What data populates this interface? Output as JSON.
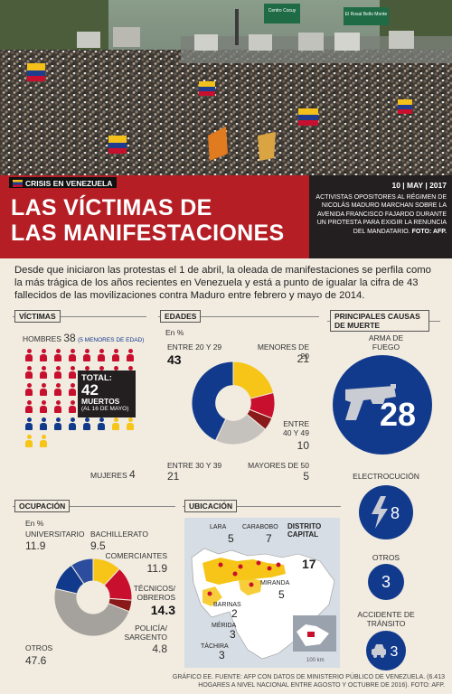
{
  "header": {
    "tag": "CRISIS EN VENEZUELA",
    "title_line1": "LAS VÍCTIMAS DE",
    "title_line2": "LAS MANIFESTACIONES",
    "date": "10 | MAY | 2017",
    "caption": "ACTIVISTAS OPOSITORES AL RÉGIMEN DE NICOLÁS MADURO MARCHAN SOBRE LA AVENIDA FRANCISCO FAJARDO DURANTE UN PROTESTA PARA EXIGIR LA RENUNCIA DEL MANDATARIO.",
    "credit": "FOTO: AFP.",
    "signs": [
      "Centro Cocuy",
      "El Rosal Bello Monte"
    ]
  },
  "lead": "Desde que iniciaron las protestas el 1 de abril, la oleada de manifestaciones se perfila como la más trágica de los años recientes en Venezuela y está a punto de igualar la cifra de 43 fallecidos de las movilizaciones contra Maduro entre febrero y mayo de 2014.",
  "victimas": {
    "heading": "VÍCTIMAS",
    "men_label": "HOMBRES",
    "men": 38,
    "men_note": "(5 MENORES DE EDAD)",
    "women_label": "MUJERES",
    "women": 4,
    "total_label": "TOTAL:",
    "total": 42,
    "total_unit": "MUERTOS",
    "total_date": "(AL 16 DE MAYO)"
  },
  "edades": {
    "heading": "EDADES",
    "unit": "En %",
    "items": [
      {
        "label": "ENTRE 20 Y 29",
        "value": "43",
        "color": "#123a8c"
      },
      {
        "label": "MENORES DE 20",
        "value": "21",
        "color": "#f6c517"
      },
      {
        "label": "ENTRE 40 Y 49",
        "value": "10",
        "color": "#c8102e"
      },
      {
        "label": "MAYORES DE 50",
        "value": "5",
        "color": "#8a1a1a"
      },
      {
        "label": "ENTRE 30 Y 39",
        "value": "21",
        "color": "#c5c2bd"
      }
    ]
  },
  "causas": {
    "heading": "PRINCIPALES CAUSAS DE MUERTE",
    "items": [
      {
        "label": "ARMA DE FUEGO",
        "value": "28",
        "icon": "pistol-icon"
      },
      {
        "label": "ELECTROCUCIÓN",
        "value": "8",
        "icon": "lightning-icon"
      },
      {
        "label": "OTROS",
        "value": "3",
        "icon": ""
      },
      {
        "label": "ACCIDENTE DE TRÁNSITO",
        "value": "3",
        "icon": "car-icon"
      }
    ]
  },
  "ocupacion": {
    "heading": "OCUPACIÓN",
    "unit": "En %",
    "items": [
      {
        "label": "UNIVERSITARIO",
        "value": "11.9",
        "color": "#123a8c"
      },
      {
        "label": "BACHILLERATO",
        "value": "9.5",
        "color": "#2c4c9e"
      },
      {
        "label": "COMERCIANTES",
        "value": "11.9",
        "color": "#f6c517"
      },
      {
        "label": "TÉCNICOS/ OBREROS",
        "value": "14.3",
        "color": "#c8102e"
      },
      {
        "label": "POLICÍA/ SARGENTO",
        "value": "4.8",
        "color": "#8a1a1a"
      },
      {
        "label": "OTROS",
        "value": "47.6",
        "color": "#a5a29d"
      }
    ]
  },
  "ubicacion": {
    "heading": "UBICACIÓN",
    "scale": "100 km",
    "items": [
      {
        "label": "LARA",
        "value": "5"
      },
      {
        "label": "CARABOBO",
        "value": "7"
      },
      {
        "label": "DISTRITO CAPITAL",
        "value": "17"
      },
      {
        "label": "MIRANDA",
        "value": "5"
      },
      {
        "label": "BARINAS",
        "value": "2"
      },
      {
        "label": "MÉRIDA",
        "value": "3"
      },
      {
        "label": "TÁCHIRA",
        "value": "3"
      }
    ]
  },
  "footer": "GRÁFICO EE. FUENTE: AFP CON DATOS DE MINISTERIO PÚBLICO DE VENEZUELA. (6.413 HOGARES A NIVEL NACIONAL ENTRE AGOSTO Y OCTUBRE DE 2016). FOTO: AFP."
}
